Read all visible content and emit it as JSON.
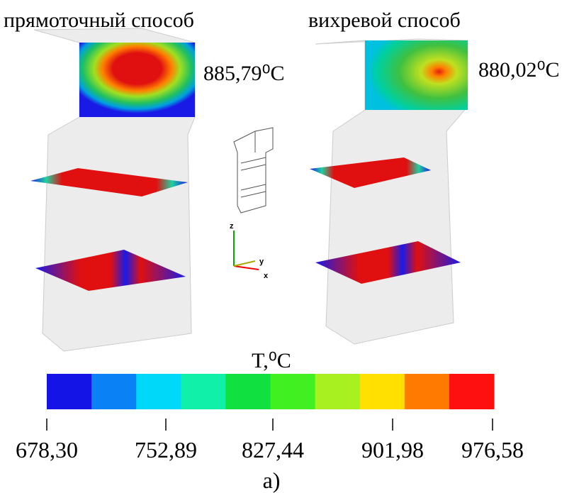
{
  "titles": {
    "left": "прямоточный способ",
    "right": "вихревой способ"
  },
  "max_temperatures": {
    "left": "885,79⁰C",
    "right": "880,02⁰C"
  },
  "axes": {
    "z": "z",
    "y": "y",
    "x": "x"
  },
  "colorbar": {
    "title": "T,⁰C",
    "ticks": [
      "678,30",
      "752,89",
      "827,44",
      "901,98",
      "976,58"
    ]
  },
  "caption": "a)"
}
